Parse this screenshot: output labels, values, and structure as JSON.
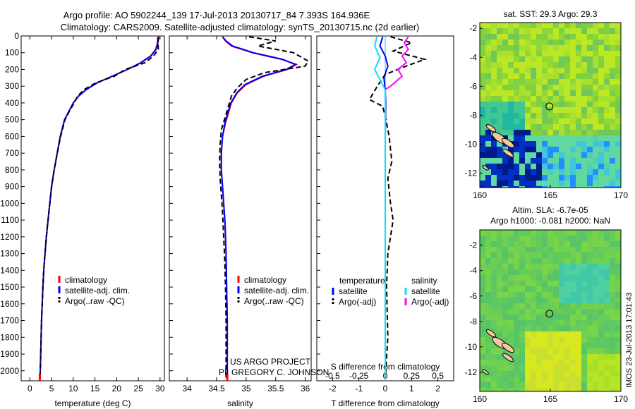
{
  "header": {
    "title_line1": "Argo profile: AO 5902244_139 17-Jul-2013 20130717_84 7.393S 164.936E",
    "title_line2": "Climatology: CARS2009. Satellite-adjusted climatology: synTS_20130715.nc (2d earlier)"
  },
  "credits": {
    "project": "US ARGO PROJECT",
    "pi": "PI: GREGORY C. JOHNSON",
    "imos": "IMOS 23-Jul-2013 17:01:43"
  },
  "colors": {
    "climatology": "#ff0000",
    "satellite": "#0000ff",
    "argo": "#000000",
    "sal_satellite": "#00e0ff",
    "sal_argo": "#ff00ff"
  },
  "chart_data": [
    {
      "type": "line",
      "xlabel": "temperature (deg C)",
      "ylabel": "",
      "xlim": [
        -2,
        31
      ],
      "ylim": [
        2060,
        0
      ],
      "xticks": [
        0,
        5,
        10,
        15,
        20,
        25,
        30
      ],
      "yticks": [
        0,
        100,
        200,
        300,
        400,
        500,
        600,
        700,
        800,
        900,
        1000,
        1100,
        1200,
        1300,
        1400,
        1500,
        1600,
        1700,
        1800,
        1900,
        2000
      ],
      "legend": [
        "climatology",
        "satellite-adj. clim.",
        "Argo(..raw -QC)"
      ],
      "legend_position": "lower-right",
      "series": [
        {
          "name": "climatology",
          "x": [
            29.5,
            29.4,
            29.0,
            27.8,
            25.5,
            22.5,
            19.0,
            15.5,
            13.0,
            11.2,
            10.0,
            9.0,
            8.0,
            7.0,
            6.3,
            5.6,
            5.0,
            4.6,
            4.2,
            3.8,
            3.5,
            3.2,
            3.0,
            2.7,
            2.5,
            2.4,
            2.3
          ],
          "y": [
            5,
            40,
            80,
            120,
            160,
            200,
            240,
            280,
            320,
            360,
            400,
            450,
            500,
            600,
            700,
            800,
            900,
            1000,
            1100,
            1200,
            1300,
            1400,
            1500,
            1700,
            1900,
            2000,
            2050
          ]
        },
        {
          "name": "satellite-adj. clim.",
          "x": [
            29.7,
            29.5,
            29.1,
            27.9,
            25.6,
            22.5,
            19.0,
            15.5,
            13.0,
            11.2,
            10.0,
            9.0,
            8.0,
            7.0,
            6.3,
            5.6,
            5.0,
            4.6,
            4.2,
            3.8,
            3.5,
            3.2,
            3.0,
            2.7,
            2.5,
            2.4,
            2.3
          ],
          "y": [
            5,
            40,
            80,
            120,
            160,
            200,
            240,
            280,
            320,
            360,
            400,
            450,
            500,
            600,
            700,
            800,
            900,
            1000,
            1100,
            1200,
            1300,
            1400,
            1500,
            1700,
            1900,
            2000,
            2050
          ]
        },
        {
          "name": "Argo(..raw -QC)",
          "x": [
            29.6,
            29.5,
            29.6,
            28.5,
            26.5,
            22.0,
            19.5,
            15.2,
            12.5,
            11.0,
            10.2,
            9.1,
            8.1,
            7.1,
            6.3,
            5.6,
            5.0,
            4.6,
            4.2,
            3.8,
            3.5,
            3.2,
            3.0,
            2.7,
            2.5,
            2.4,
            2.3
          ],
          "y": [
            5,
            40,
            80,
            120,
            160,
            200,
            240,
            280,
            320,
            360,
            400,
            450,
            500,
            600,
            700,
            800,
            900,
            1000,
            1100,
            1200,
            1300,
            1400,
            1500,
            1700,
            1900,
            2000,
            2050
          ]
        }
      ]
    },
    {
      "type": "line",
      "xlabel": "salinity",
      "xlim": [
        33.7,
        36.1
      ],
      "ylim": [
        2060,
        0
      ],
      "xticks": [
        34,
        34.5,
        35,
        35.5,
        36
      ],
      "legend": [
        "climatology",
        "satellite-adj. clim.",
        "Argo(..raw -QC)"
      ],
      "legend_position": "lower-right",
      "series": [
        {
          "name": "climatology",
          "x": [
            34.6,
            34.65,
            34.75,
            35.1,
            35.6,
            35.85,
            35.7,
            35.3,
            35.0,
            34.85,
            34.75,
            34.7,
            34.65,
            34.6,
            34.58,
            34.58,
            34.6,
            34.62,
            34.64,
            34.65,
            34.66,
            34.67,
            34.68,
            34.68,
            34.68
          ],
          "y": [
            5,
            30,
            60,
            100,
            140,
            170,
            200,
            240,
            290,
            340,
            400,
            460,
            520,
            600,
            700,
            800,
            900,
            1000,
            1100,
            1200,
            1300,
            1500,
            1700,
            1900,
            2050
          ]
        },
        {
          "name": "satellite-adj. clim.",
          "x": [
            34.6,
            34.66,
            34.77,
            35.12,
            35.62,
            35.83,
            35.68,
            35.28,
            34.98,
            34.84,
            34.74,
            34.69,
            34.64,
            34.6,
            34.58,
            34.58,
            34.6,
            34.62,
            34.64,
            34.65,
            34.66,
            34.67,
            34.68,
            34.68,
            34.68
          ],
          "y": [
            5,
            30,
            60,
            100,
            140,
            170,
            200,
            240,
            290,
            340,
            400,
            460,
            520,
            600,
            700,
            800,
            900,
            1000,
            1100,
            1200,
            1300,
            1500,
            1700,
            1900,
            2050
          ]
        },
        {
          "name": "Argo(..raw -QC)",
          "x": [
            35.05,
            35.5,
            35.2,
            35.8,
            36.05,
            36.0,
            35.3,
            35.0,
            34.85,
            34.75,
            34.7,
            34.65,
            34.58,
            34.56,
            34.55,
            34.56,
            34.58,
            34.6,
            34.62,
            34.64,
            34.65,
            34.66,
            34.66,
            34.66
          ],
          "y": [
            5,
            30,
            60,
            100,
            150,
            180,
            220,
            260,
            310,
            360,
            420,
            480,
            560,
            650,
            750,
            850,
            950,
            1050,
            1200,
            1350,
            1500,
            1700,
            1900,
            2050
          ]
        }
      ]
    },
    {
      "type": "line",
      "xlabel": "T difference from climatology",
      "xlabel_top": "S difference from climatology",
      "xlim_T": [
        -2.6,
        2.6
      ],
      "xticks_T": [
        -2,
        -1,
        0,
        1,
        2
      ],
      "xlim_S": [
        -0.65,
        0.65
      ],
      "xticks_S": [
        -0.5,
        -0.25,
        0,
        0.25,
        0.5
      ],
      "ylim": [
        2060,
        0
      ],
      "legend_titles": [
        "temperature",
        "salinity"
      ],
      "legend": [
        "satellite",
        "Argo(-adj)",
        "satellite",
        "Argo(-adj)"
      ],
      "legend_position": "lower-center",
      "series": [
        {
          "name": "satellite",
          "x": [
            -0.1,
            -0.2,
            0.0,
            0.1,
            -0.05,
            0.0,
            0.02,
            0.0,
            0.0,
            0.0,
            0.0
          ],
          "y": [
            5,
            60,
            120,
            180,
            250,
            320,
            400,
            600,
            1000,
            1500,
            2050
          ]
        },
        {
          "name": "Argo(-adj)",
          "x": [
            0.2,
            1.0,
            0.3,
            1.5,
            0.8,
            0.0,
            -0.3,
            -0.6,
            -0.1,
            0.0,
            0.15,
            0.25,
            0.1,
            0.2,
            0.3,
            0.1,
            0.05,
            0.1,
            0.0
          ],
          "y": [
            5,
            40,
            90,
            140,
            180,
            230,
            300,
            380,
            420,
            480,
            600,
            750,
            850,
            1000,
            1100,
            1300,
            1500,
            1800,
            2050
          ]
        },
        {
          "name": "satellite",
          "x": [
            -0.08,
            -0.1,
            -0.05,
            -0.1,
            -0.05,
            0.0,
            0.0,
            0.0,
            0.0
          ],
          "y": [
            5,
            60,
            130,
            200,
            260,
            320,
            400,
            1000,
            2050
          ]
        },
        {
          "name": "Argo(-adj)",
          "x": [
            0.22,
            0.18,
            0.22,
            0.16,
            0.2,
            0.12,
            0.16,
            0.05,
            0.0
          ],
          "y": [
            5,
            40,
            80,
            120,
            160,
            200,
            240,
            300,
            320
          ]
        }
      ]
    },
    {
      "type": "heatmap",
      "title": "sat. SST: 29.3 Argo: 29.3",
      "xlim": [
        160,
        170
      ],
      "ylim": [
        -13,
        -1.6
      ],
      "xticks": [
        160,
        165,
        170
      ],
      "yticks": [
        -2,
        -4,
        -6,
        -8,
        -10,
        -12
      ],
      "marker": {
        "lon": 164.936,
        "lat": -7.393
      }
    },
    {
      "type": "heatmap",
      "title": "Altim. SLA: -6.7e-05",
      "subtitle": "Argo h1000: -0.081 h2000: NaN",
      "xlim": [
        160,
        170
      ],
      "ylim": [
        -13.5,
        -0.8
      ],
      "xticks": [
        160,
        165,
        170
      ],
      "yticks": [
        -2,
        -4,
        -6,
        -8,
        -10,
        -12
      ],
      "marker": {
        "lon": 164.936,
        "lat": -7.393
      }
    }
  ]
}
